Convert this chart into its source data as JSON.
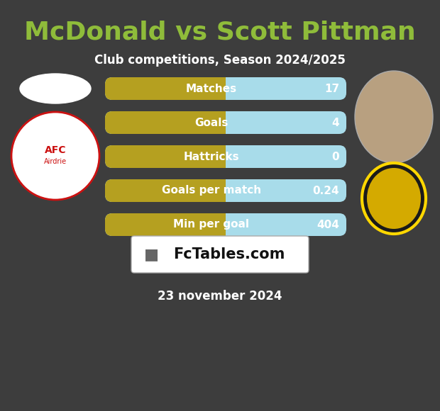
{
  "title": "McDonald vs Scott Pittman",
  "subtitle": "Club competitions, Season 2024/2025",
  "date_text": "23 november 2024",
  "background_color": "#3d3d3d",
  "bar_bg_color": "#a8dcea",
  "bar_fg_color": "#b5a020",
  "title_color": "#8fbc3a",
  "subtitle_color": "#ffffff",
  "date_color": "#ffffff",
  "stats": [
    {
      "label": "Matches",
      "value": "17"
    },
    {
      "label": "Goals",
      "value": "4"
    },
    {
      "label": "Hattricks",
      "value": "0"
    },
    {
      "label": "Goals per match",
      "value": "0.24"
    },
    {
      "label": "Min per goal",
      "value": "404"
    }
  ],
  "figsize": [
    6.2,
    5.8
  ],
  "dpi": 100
}
